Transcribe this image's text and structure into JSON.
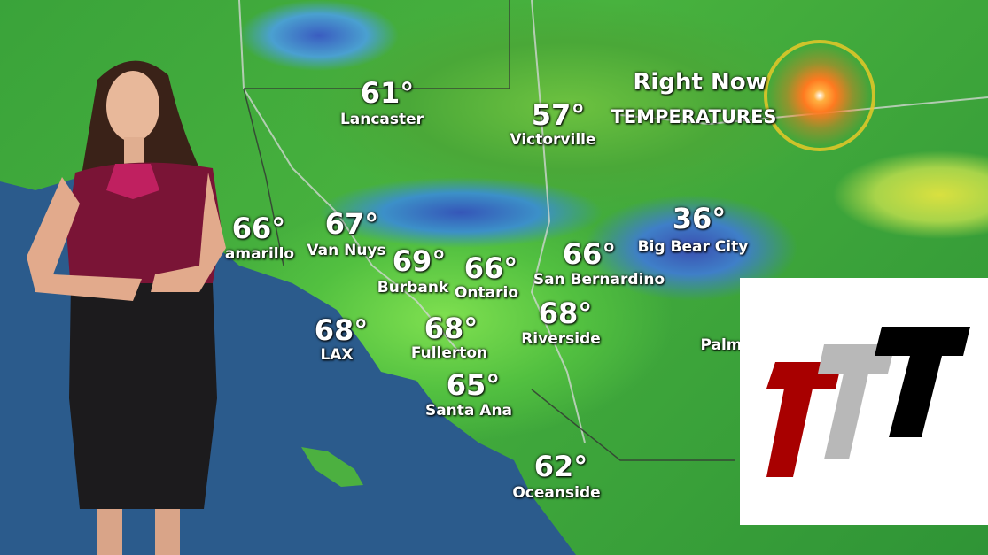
{
  "header": {
    "title_line1": "Right Now",
    "title_line2": "TEMPERATURES"
  },
  "cities": [
    {
      "temp": "61°",
      "name": "Lancaster"
    },
    {
      "temp": "57°",
      "name": "Victorville"
    },
    {
      "temp": "66°",
      "name": "amarillo"
    },
    {
      "temp": "67°",
      "name": "Van Nuys"
    },
    {
      "temp": "69°",
      "name": "Burbank"
    },
    {
      "temp": "66°",
      "name": "Ontario"
    },
    {
      "temp": "66°",
      "name": "San Bernardino"
    },
    {
      "temp": "36°",
      "name": "Big Bear City"
    },
    {
      "temp": "68°",
      "name": "LAX"
    },
    {
      "temp": "68°",
      "name": "Fullerton"
    },
    {
      "temp": "68°",
      "name": "Riverside"
    },
    {
      "temp": "65°",
      "name": "Santa Ana"
    },
    {
      "temp": "62°",
      "name": "Oceanside"
    },
    {
      "temp": "",
      "name": "Palm"
    }
  ],
  "colors": {
    "ocean": "#2a5a8a",
    "land": "#3aa33a",
    "logo_red": "#a80000",
    "logo_gray": "#b8b8b8",
    "logo_black": "#000000"
  }
}
